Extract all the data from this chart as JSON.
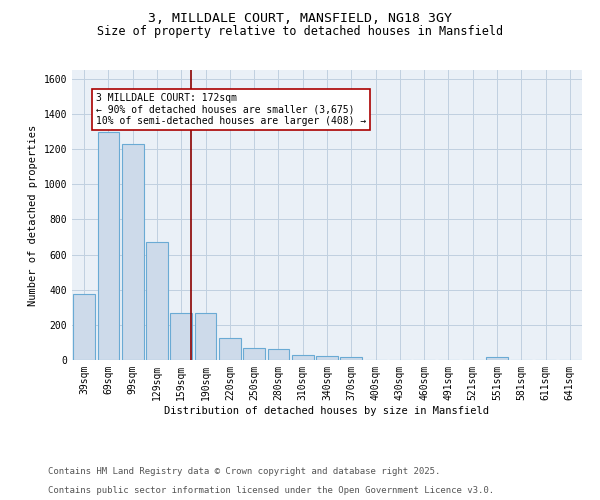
{
  "title_line1": "3, MILLDALE COURT, MANSFIELD, NG18 3GY",
  "title_line2": "Size of property relative to detached houses in Mansfield",
  "xlabel": "Distribution of detached houses by size in Mansfield",
  "ylabel": "Number of detached properties",
  "categories": [
    "39sqm",
    "69sqm",
    "99sqm",
    "129sqm",
    "159sqm",
    "190sqm",
    "220sqm",
    "250sqm",
    "280sqm",
    "310sqm",
    "340sqm",
    "370sqm",
    "400sqm",
    "430sqm",
    "460sqm",
    "491sqm",
    "521sqm",
    "551sqm",
    "581sqm",
    "611sqm",
    "641sqm"
  ],
  "values": [
    375,
    1300,
    1230,
    670,
    270,
    270,
    125,
    70,
    65,
    30,
    20,
    15,
    0,
    0,
    0,
    0,
    0,
    15,
    0,
    0,
    0
  ],
  "bar_color": "#cddaea",
  "bar_edge_color": "#6aaad4",
  "bar_edge_width": 0.8,
  "grid_color": "#c0d0e0",
  "background_color": "#eaf0f7",
  "red_line_color": "#8b0000",
  "annotation_text": "3 MILLDALE COURT: 172sqm\n← 90% of detached houses are smaller (3,675)\n10% of semi-detached houses are larger (408) →",
  "annotation_box_color": "white",
  "annotation_box_edge_color": "#aa0000",
  "ylim": [
    0,
    1650
  ],
  "yticks": [
    0,
    200,
    400,
    600,
    800,
    1000,
    1200,
    1400,
    1600
  ],
  "footnote_line1": "Contains HM Land Registry data © Crown copyright and database right 2025.",
  "footnote_line2": "Contains public sector information licensed under the Open Government Licence v3.0.",
  "title_fontsize": 9.5,
  "subtitle_fontsize": 8.5,
  "axis_label_fontsize": 7.5,
  "tick_fontsize": 7,
  "annotation_fontsize": 7,
  "footnote_fontsize": 6.5
}
